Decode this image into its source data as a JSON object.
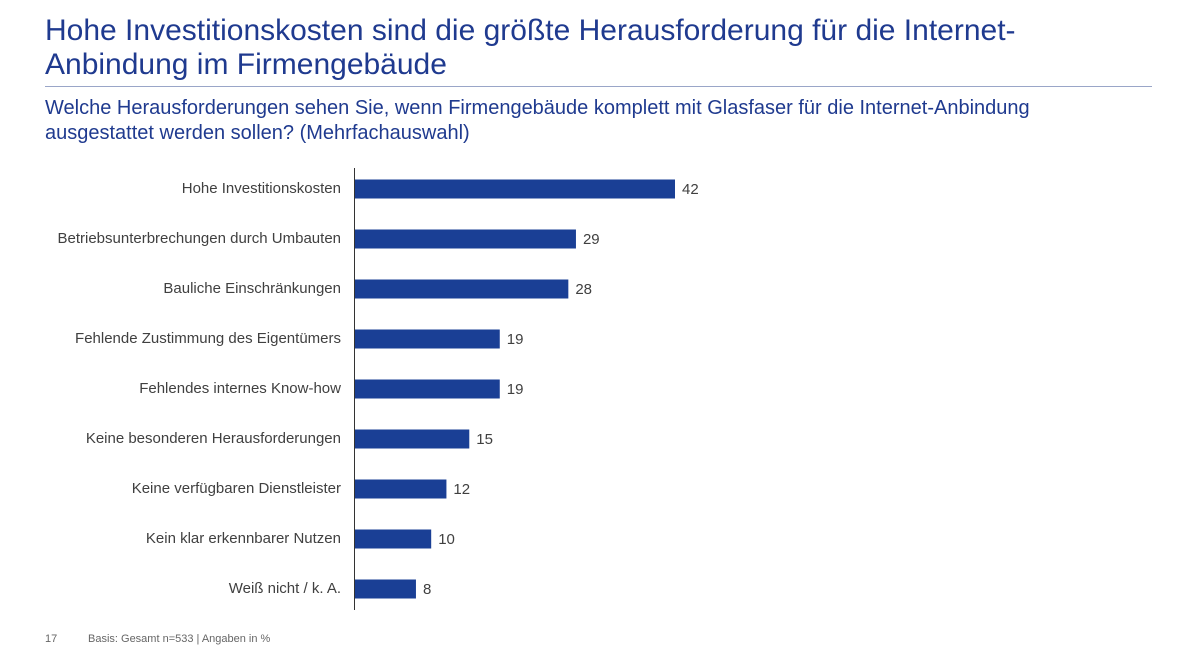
{
  "chart_data": {
    "type": "hbar",
    "title": "Hohe Investitionskosten sind die größte Herausforderung für die Internet-Anbindung im Firmengebäude",
    "subtitle": "Welche Herausforderungen sehen Sie, wenn Firmengebäude komplett mit Glasfaser für die Internet-Anbindung ausgestattet werden sollen? (Mehrfachauswahl)",
    "categories": [
      "Hohe Investitionskosten",
      "Betriebsunterbrechungen durch Umbauten",
      "Bauliche Einschränkungen",
      "Fehlende Zustimmung des Eigentümers",
      "Fehlendes internes Know-how",
      "Keine besonderen Herausforderungen",
      "Keine verfügbaren Dienstleister",
      "Kein klar erkennbarer Nutzen",
      "Weiß nicht / k. A."
    ],
    "values": [
      42,
      29,
      28,
      19,
      19,
      15,
      12,
      10,
      8
    ],
    "color": "#1a3f95",
    "page_number": "17",
    "footnote": "Basis: Gesamt n=533 | Angaben in %"
  }
}
